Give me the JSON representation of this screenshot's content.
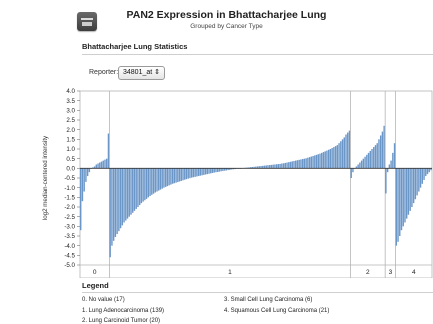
{
  "header": {
    "title": "PAN2 Expression in Bhattacharjee Lung",
    "subtitle": "Grouped by Cancer Type"
  },
  "stats": {
    "title": "Bhattacharjee Lung Statistics"
  },
  "reporter": {
    "label": "Reporter:",
    "value": "34801_at ⇕"
  },
  "legend": {
    "title": "Legend",
    "items": [
      "0. No value (17)",
      "1. Lung Adenocarcinoma (139)",
      "2. Lung Carcinoid Tumor (20)",
      "3. Small Cell Lung Carcinoma (6)",
      "4. Squamous Cell Lung Carcinoma (21)"
    ]
  },
  "chart_data": {
    "type": "bar",
    "ylabel": "log2 median-centered intensity",
    "ylim": [
      -5.0,
      4.0
    ],
    "yticks": [
      "4.0",
      "3.5",
      "3.0",
      "2.5",
      "2.0",
      "1.5",
      "1.0",
      "0.5",
      "0.0",
      "-0.5",
      "-1.0",
      "-1.5",
      "-2.0",
      "-2.5",
      "-3.0",
      "-3.5",
      "-4.0",
      "-4.5",
      "-5.0"
    ],
    "bar_color": "#6b96c8",
    "groups": [
      {
        "label": "0",
        "name": "No value",
        "count": 17,
        "values": [
          -3.2,
          -1.7,
          -1.2,
          -0.7,
          -0.4,
          -0.2,
          0.0,
          0.05,
          0.1,
          0.2,
          0.25,
          0.3,
          0.35,
          0.4,
          0.45,
          0.5,
          1.8
        ]
      },
      {
        "label": "1",
        "name": "Lung Adenocarcinoma",
        "count": 139,
        "values": [
          -4.6,
          -4.0,
          -3.75,
          -3.55,
          -3.4,
          -3.25,
          -3.1,
          -2.95,
          -2.8,
          -2.7,
          -2.6,
          -2.5,
          -2.4,
          -2.3,
          -2.2,
          -2.1,
          -2.0,
          -1.9,
          -1.8,
          -1.72,
          -1.65,
          -1.58,
          -1.5,
          -1.43,
          -1.37,
          -1.31,
          -1.25,
          -1.2,
          -1.15,
          -1.1,
          -1.05,
          -1.0,
          -0.96,
          -0.92,
          -0.88,
          -0.84,
          -0.8,
          -0.77,
          -0.74,
          -0.71,
          -0.68,
          -0.65,
          -0.62,
          -0.59,
          -0.56,
          -0.53,
          -0.51,
          -0.48,
          -0.46,
          -0.44,
          -0.42,
          -0.4,
          -0.38,
          -0.36,
          -0.34,
          -0.32,
          -0.3,
          -0.28,
          -0.26,
          -0.24,
          -0.22,
          -0.2,
          -0.19,
          -0.17,
          -0.15,
          -0.14,
          -0.12,
          -0.11,
          -0.09,
          -0.08,
          -0.06,
          -0.05,
          -0.04,
          -0.02,
          -0.01,
          0.0,
          0.01,
          0.02,
          0.03,
          0.04,
          0.05,
          0.06,
          0.07,
          0.08,
          0.09,
          0.1,
          0.11,
          0.12,
          0.13,
          0.14,
          0.15,
          0.16,
          0.17,
          0.18,
          0.19,
          0.2,
          0.21,
          0.22,
          0.23,
          0.25,
          0.26,
          0.28,
          0.3,
          0.32,
          0.34,
          0.36,
          0.38,
          0.4,
          0.42,
          0.44,
          0.46,
          0.48,
          0.5,
          0.52,
          0.55,
          0.58,
          0.61,
          0.64,
          0.67,
          0.7,
          0.73,
          0.76,
          0.8,
          0.84,
          0.88,
          0.92,
          0.96,
          1.0,
          1.05,
          1.1,
          1.15,
          1.2,
          1.3,
          1.4,
          1.5,
          1.6,
          1.75,
          1.85,
          1.95
        ]
      },
      {
        "label": "2",
        "name": "Lung Carcinoid Tumor",
        "count": 20,
        "values": [
          -0.5,
          -0.2,
          0.0,
          0.1,
          0.2,
          0.3,
          0.4,
          0.5,
          0.6,
          0.7,
          0.8,
          0.9,
          1.0,
          1.1,
          1.2,
          1.3,
          1.5,
          1.7,
          1.9,
          2.2
        ]
      },
      {
        "label": "3",
        "name": "Small Cell Lung Carcinoma",
        "count": 6,
        "values": [
          -1.3,
          -0.2,
          0.2,
          0.4,
          0.8,
          1.3
        ]
      },
      {
        "label": "4",
        "name": "Squamous Cell Lung Carcinoma",
        "count": 21,
        "values": [
          -4.0,
          -3.8,
          -3.5,
          -3.2,
          -3.0,
          -2.8,
          -2.6,
          -2.4,
          -2.2,
          -2.0,
          -1.8,
          -1.6,
          -1.4,
          -1.2,
          -1.0,
          -0.8,
          -0.6,
          -0.4,
          -0.3,
          -0.2,
          -0.1
        ]
      }
    ]
  }
}
